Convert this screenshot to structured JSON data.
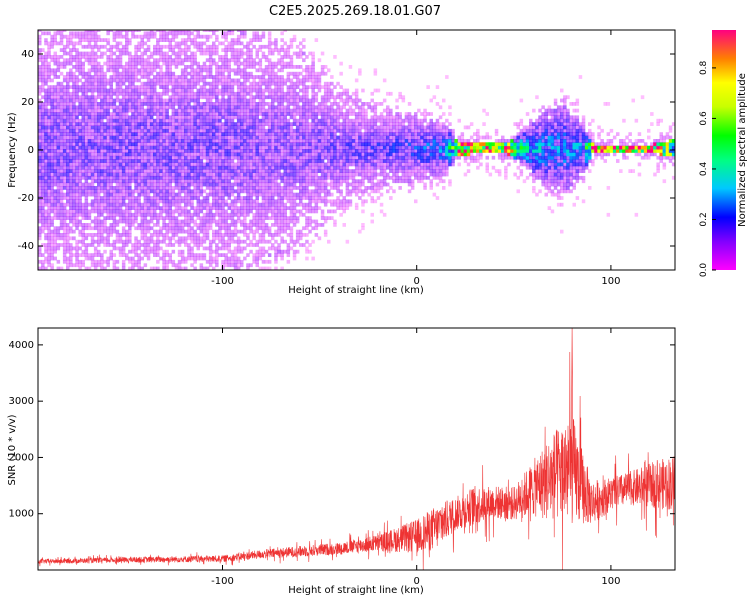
{
  "figure_title": "C2E5.2025.269.18.01.G07",
  "chart_data": [
    {
      "type": "heatmap",
      "title": "",
      "xlabel": "Height of straight line (km)",
      "ylabel": "Frequency (Hz)",
      "xlim": [
        -195,
        133
      ],
      "ylim": [
        -50,
        50
      ],
      "x_ticks": [
        -100,
        0,
        100
      ],
      "y_ticks": [
        -40,
        -20,
        0,
        20,
        40
      ],
      "colorbar": {
        "label": "Normalized spectral amplitude",
        "range": [
          0,
          0.95
        ],
        "ticks": [
          0.0,
          0.2,
          0.4,
          0.6,
          0.8
        ]
      },
      "spread_profile": [
        {
          "x": -195,
          "half_width_hz": 50,
          "amplitude": 0.15
        },
        {
          "x": -100,
          "half_width_hz": 50,
          "amplitude": 0.15
        },
        {
          "x": -60,
          "half_width_hz": 40,
          "amplitude": 0.14
        },
        {
          "x": -40,
          "half_width_hz": 22,
          "amplitude": 0.16
        },
        {
          "x": -20,
          "half_width_hz": 15,
          "amplitude": 0.18
        },
        {
          "x": 0,
          "half_width_hz": 13,
          "amplitude": 0.22
        },
        {
          "x": 15,
          "half_width_hz": 9,
          "amplitude": 0.3
        },
        {
          "x": 20,
          "half_width_hz": 3,
          "amplitude": 0.8
        },
        {
          "x": 30,
          "half_width_hz": 2,
          "amplitude": 0.75
        },
        {
          "x": 45,
          "half_width_hz": 2,
          "amplitude": 0.8
        },
        {
          "x": 55,
          "half_width_hz": 7,
          "amplitude": 0.4
        },
        {
          "x": 65,
          "half_width_hz": 15,
          "amplitude": 0.3
        },
        {
          "x": 75,
          "half_width_hz": 18,
          "amplitude": 0.28
        },
        {
          "x": 85,
          "half_width_hz": 10,
          "amplitude": 0.3
        },
        {
          "x": 90,
          "half_width_hz": 1.5,
          "amplitude": 0.95
        },
        {
          "x": 120,
          "half_width_hz": 1.5,
          "amplitude": 0.9
        },
        {
          "x": 133,
          "half_width_hz": 4,
          "amplitude": 0.5
        }
      ],
      "line_center_hz": 0
    },
    {
      "type": "line",
      "title": "",
      "xlabel": "Height of straight line (km)",
      "ylabel": "SNR (10 * v/v)",
      "xlim": [
        -195,
        133
      ],
      "ylim": [
        0,
        4300
      ],
      "x_ticks": [
        -100,
        0,
        100
      ],
      "y_ticks": [
        1000,
        2000,
        3000,
        4000
      ],
      "color": "#ee3333",
      "series": [
        {
          "x": [
            -195,
            -150,
            -100,
            -80,
            -60,
            -40,
            -20,
            0,
            10,
            20,
            30,
            40,
            50,
            60,
            70,
            80,
            90,
            100,
            110,
            120,
            133
          ],
          "y": [
            150,
            180,
            200,
            280,
            330,
            380,
            480,
            600,
            750,
            1000,
            1150,
            1200,
            1180,
            1450,
            1650,
            1800,
            1200,
            1350,
            1450,
            1500,
            1550
          ],
          "noise_amplitude": [
            40,
            50,
            60,
            80,
            100,
            110,
            150,
            300,
            400,
            300,
            350,
            300,
            300,
            500,
            800,
            1000,
            400,
            300,
            300,
            400,
            500
          ]
        }
      ],
      "max_value": 4300
    }
  ]
}
